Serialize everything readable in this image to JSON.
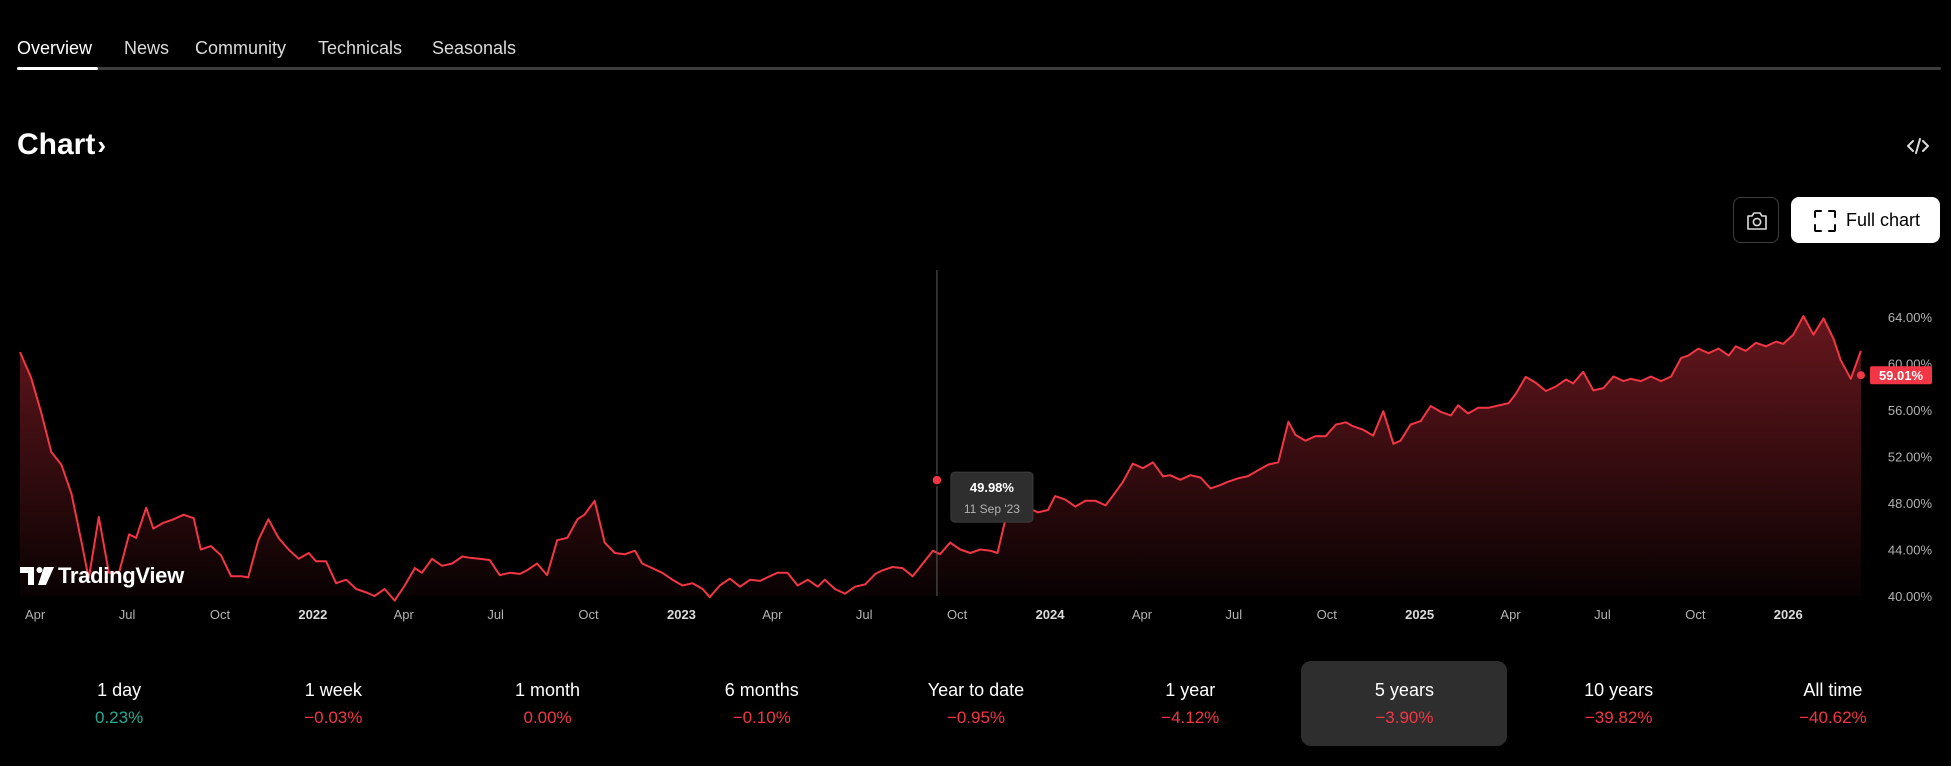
{
  "tabs": [
    {
      "label": "Overview",
      "active": true
    },
    {
      "label": "News"
    },
    {
      "label": "Community"
    },
    {
      "label": "Technicals"
    },
    {
      "label": "Seasonals"
    }
  ],
  "chart_header": {
    "title": "Chart",
    "chevron": "›",
    "embed_icon": "code-icon"
  },
  "toolbar": {
    "camera_icon": "camera-icon",
    "full_chart_label": "Full chart",
    "full_chart_icon": "fullscreen-icon"
  },
  "logo": {
    "text": "TradingView"
  },
  "colors": {
    "line": "#f23645",
    "negative": "#f23645",
    "positive": "#22ab94",
    "last_value_bg": "#f23645"
  },
  "chart_data": {
    "type": "area",
    "x_tick_labels": [
      {
        "label": "Apr",
        "date": "2021-04-01"
      },
      {
        "label": "Jul",
        "date": "2021-07-01"
      },
      {
        "label": "Oct",
        "date": "2021-10-01"
      },
      {
        "label": "2022",
        "date": "2022-01-01",
        "bold": true
      },
      {
        "label": "Apr",
        "date": "2022-04-01"
      },
      {
        "label": "Jul",
        "date": "2022-07-01"
      },
      {
        "label": "Oct",
        "date": "2022-10-01"
      },
      {
        "label": "2023",
        "date": "2023-01-01",
        "bold": true
      },
      {
        "label": "Apr",
        "date": "2023-04-01"
      },
      {
        "label": "Jul",
        "date": "2023-07-01"
      },
      {
        "label": "Oct",
        "date": "2023-10-01"
      },
      {
        "label": "2024",
        "date": "2024-01-01",
        "bold": true
      },
      {
        "label": "Apr",
        "date": "2024-04-01"
      },
      {
        "label": "Jul",
        "date": "2024-07-01"
      },
      {
        "label": "Oct",
        "date": "2024-10-01"
      },
      {
        "label": "2025",
        "date": "2025-01-01",
        "bold": true
      },
      {
        "label": "Apr",
        "date": "2025-04-01"
      },
      {
        "label": "Jul",
        "date": "2025-07-01"
      },
      {
        "label": "Oct",
        "date": "2025-10-01"
      },
      {
        "label": "2026",
        "date": "2026-01-01",
        "bold": true
      }
    ],
    "y_ticks": [
      {
        "value": 40,
        "label": "40.00%"
      },
      {
        "value": 44,
        "label": "44.00%"
      },
      {
        "value": 48,
        "label": "48.00%"
      },
      {
        "value": 52,
        "label": "52.00%"
      },
      {
        "value": 56,
        "label": "56.00%"
      },
      {
        "value": 60,
        "label": "60.00%"
      },
      {
        "value": 64,
        "label": "64.00%"
      }
    ],
    "ylim": [
      40,
      66
    ],
    "xlim": [
      "2021-03-17",
      "2026-03-20"
    ],
    "grid": false,
    "points": [
      [
        "2021-03-17",
        61.0
      ],
      [
        "2021-03-28",
        58.8
      ],
      [
        "2021-04-07",
        55.8
      ],
      [
        "2021-04-17",
        52.4
      ],
      [
        "2021-04-27",
        51.3
      ],
      [
        "2021-05-07",
        48.8
      ],
      [
        "2021-05-17",
        44.6
      ],
      [
        "2021-05-24",
        41.5
      ],
      [
        "2021-06-03",
        46.8
      ],
      [
        "2021-06-13",
        42.0
      ],
      [
        "2021-06-23",
        42.0
      ],
      [
        "2021-07-03",
        45.3
      ],
      [
        "2021-07-10",
        45.0
      ],
      [
        "2021-07-20",
        47.6
      ],
      [
        "2021-07-27",
        45.8
      ],
      [
        "2021-08-06",
        46.3
      ],
      [
        "2021-08-16",
        46.6
      ],
      [
        "2021-08-26",
        47.0
      ],
      [
        "2021-09-05",
        46.7
      ],
      [
        "2021-09-12",
        44.0
      ],
      [
        "2021-09-22",
        44.3
      ],
      [
        "2021-10-02",
        43.5
      ],
      [
        "2021-10-12",
        41.7
      ],
      [
        "2021-10-22",
        41.7
      ],
      [
        "2021-10-29",
        41.6
      ],
      [
        "2021-11-08",
        44.8
      ],
      [
        "2021-11-18",
        46.6
      ],
      [
        "2021-11-28",
        45.0
      ],
      [
        "2021-12-08",
        44.0
      ],
      [
        "2021-12-18",
        43.2
      ],
      [
        "2021-12-28",
        43.7
      ],
      [
        "2022-01-04",
        43.0
      ],
      [
        "2022-01-14",
        43.0
      ],
      [
        "2022-01-24",
        41.1
      ],
      [
        "2022-02-03",
        41.4
      ],
      [
        "2022-02-13",
        40.6
      ],
      [
        "2022-02-23",
        40.3
      ],
      [
        "2022-03-03",
        40.0
      ],
      [
        "2022-03-13",
        40.6
      ],
      [
        "2022-03-23",
        39.6
      ],
      [
        "2022-04-02",
        40.9
      ],
      [
        "2022-04-12",
        42.4
      ],
      [
        "2022-04-19",
        42.0
      ],
      [
        "2022-04-29",
        43.2
      ],
      [
        "2022-05-09",
        42.6
      ],
      [
        "2022-05-19",
        42.8
      ],
      [
        "2022-05-29",
        43.4
      ],
      [
        "2022-06-05",
        43.3
      ],
      [
        "2022-06-15",
        43.2
      ],
      [
        "2022-06-25",
        43.1
      ],
      [
        "2022-07-05",
        41.8
      ],
      [
        "2022-07-15",
        42.0
      ],
      [
        "2022-07-25",
        41.9
      ],
      [
        "2022-08-01",
        42.2
      ],
      [
        "2022-08-11",
        42.8
      ],
      [
        "2022-08-21",
        41.8
      ],
      [
        "2022-08-31",
        44.8
      ],
      [
        "2022-09-10",
        45.0
      ],
      [
        "2022-09-20",
        46.6
      ],
      [
        "2022-09-27",
        47.0
      ],
      [
        "2022-10-07",
        48.2
      ],
      [
        "2022-10-17",
        44.6
      ],
      [
        "2022-10-27",
        43.7
      ],
      [
        "2022-11-06",
        43.6
      ],
      [
        "2022-11-16",
        43.9
      ],
      [
        "2022-11-23",
        42.8
      ],
      [
        "2022-12-03",
        42.4
      ],
      [
        "2022-12-13",
        42.0
      ],
      [
        "2022-12-23",
        41.4
      ],
      [
        "2023-01-02",
        40.9
      ],
      [
        "2023-01-12",
        41.1
      ],
      [
        "2023-01-22",
        40.6
      ],
      [
        "2023-01-29",
        39.9
      ],
      [
        "2023-02-08",
        40.9
      ],
      [
        "2023-02-18",
        41.5
      ],
      [
        "2023-02-28",
        40.8
      ],
      [
        "2023-03-10",
        41.4
      ],
      [
        "2023-03-20",
        41.3
      ],
      [
        "2023-03-27",
        41.6
      ],
      [
        "2023-04-06",
        42.0
      ],
      [
        "2023-04-16",
        42.0
      ],
      [
        "2023-04-26",
        40.9
      ],
      [
        "2023-05-06",
        41.4
      ],
      [
        "2023-05-16",
        40.8
      ],
      [
        "2023-05-23",
        41.4
      ],
      [
        "2023-06-02",
        40.6
      ],
      [
        "2023-06-12",
        40.2
      ],
      [
        "2023-06-22",
        40.8
      ],
      [
        "2023-07-02",
        41.0
      ],
      [
        "2023-07-12",
        41.9
      ],
      [
        "2023-07-19",
        42.2
      ],
      [
        "2023-07-29",
        42.5
      ],
      [
        "2023-08-08",
        42.4
      ],
      [
        "2023-08-18",
        41.7
      ],
      [
        "2023-08-28",
        42.8
      ],
      [
        "2023-09-07",
        43.9
      ],
      [
        "2023-09-14",
        43.6
      ],
      [
        "2023-09-24",
        44.6
      ],
      [
        "2023-10-04",
        44.0
      ],
      [
        "2023-10-14",
        43.7
      ],
      [
        "2023-10-24",
        44.0
      ],
      [
        "2023-11-03",
        43.9
      ],
      [
        "2023-11-10",
        43.7
      ],
      [
        "2023-11-20",
        47.4
      ],
      [
        "2023-11-30",
        47.6
      ],
      [
        "2023-12-10",
        47.6
      ],
      [
        "2023-12-20",
        47.2
      ],
      [
        "2023-12-30",
        47.4
      ],
      [
        "2024-01-06",
        48.6
      ],
      [
        "2024-01-16",
        48.3
      ],
      [
        "2024-01-26",
        47.7
      ],
      [
        "2024-02-05",
        48.2
      ],
      [
        "2024-02-15",
        48.2
      ],
      [
        "2024-02-25",
        47.8
      ],
      [
        "2024-03-03",
        48.6
      ],
      [
        "2024-03-13",
        49.8
      ],
      [
        "2024-03-23",
        51.4
      ],
      [
        "2024-04-02",
        51.0
      ],
      [
        "2024-04-12",
        51.5
      ],
      [
        "2024-04-22",
        50.3
      ],
      [
        "2024-04-29",
        50.4
      ],
      [
        "2024-05-09",
        50.0
      ],
      [
        "2024-05-19",
        50.4
      ],
      [
        "2024-05-29",
        50.2
      ],
      [
        "2024-06-08",
        49.2
      ],
      [
        "2024-06-18",
        49.4
      ],
      [
        "2024-06-25",
        49.6
      ],
      [
        "2024-07-05",
        49.8
      ],
      [
        "2024-07-15",
        49.9
      ],
      [
        "2024-07-25",
        50.3
      ],
      [
        "2024-08-04",
        50.7
      ],
      [
        "2024-08-14",
        50.8
      ],
      [
        "2024-08-24",
        54.2
      ],
      [
        "2024-08-31",
        53.0
      ],
      [
        "2024-09-10",
        52.4
      ],
      [
        "2024-09-20",
        52.7
      ],
      [
        "2024-09-30",
        52.6
      ],
      [
        "2024-10-10",
        53.5
      ],
      [
        "2024-10-20",
        53.6
      ],
      [
        "2024-10-27",
        53.2
      ],
      [
        "2024-11-06",
        52.8
      ],
      [
        "2024-11-16",
        52.2
      ],
      [
        "2024-11-26",
        54.2
      ],
      [
        "2024-12-06",
        51.3
      ],
      [
        "2024-12-13",
        51.5
      ],
      [
        "2024-12-23",
        52.8
      ],
      [
        "2025-01-02",
        53.0
      ],
      [
        "2025-01-12",
        54.2
      ],
      [
        "2025-01-22",
        53.6
      ],
      [
        "2025-02-01",
        53.2
      ],
      [
        "2025-02-08",
        54.0
      ],
      [
        "2025-02-18",
        53.2
      ],
      [
        "2025-02-28",
        53.6
      ],
      [
        "2025-03-10",
        53.5
      ],
      [
        "2025-03-20",
        53.6
      ],
      [
        "2025-03-30",
        53.7
      ],
      [
        "2025-04-06",
        54.4
      ],
      [
        "2025-04-16",
        55.8
      ],
      [
        "2025-04-26",
        55.2
      ],
      [
        "2025-05-06",
        54.4
      ],
      [
        "2025-05-16",
        54.7
      ],
      [
        "2025-05-26",
        55.2
      ],
      [
        "2025-06-02",
        54.8
      ],
      [
        "2025-06-12",
        55.8
      ],
      [
        "2025-06-22",
        54.2
      ],
      [
        "2025-07-02",
        54.4
      ],
      [
        "2025-07-12",
        55.4
      ],
      [
        "2025-07-22",
        55.0
      ],
      [
        "2025-07-29",
        55.2
      ],
      [
        "2025-08-08",
        55.0
      ],
      [
        "2025-08-18",
        55.4
      ],
      [
        "2025-08-28",
        55.0
      ],
      [
        "2025-09-07",
        55.4
      ],
      [
        "2025-09-17",
        57.0
      ],
      [
        "2025-09-24",
        57.2
      ],
      [
        "2025-10-04",
        57.8
      ],
      [
        "2025-10-14",
        57.4
      ],
      [
        "2025-10-24",
        57.8
      ],
      [
        "2025-11-03",
        57.2
      ],
      [
        "2025-11-10",
        58.0
      ],
      [
        "2025-11-20",
        57.6
      ],
      [
        "2025-11-30",
        58.3
      ],
      [
        "2025-12-10",
        58.0
      ],
      [
        "2025-12-20",
        58.4
      ],
      [
        "2025-12-27",
        58.2
      ],
      [
        "2026-01-06",
        59.0
      ],
      [
        "2026-01-16",
        60.6
      ],
      [
        "2026-01-26",
        59.0
      ],
      [
        "2026-02-05",
        60.4
      ],
      [
        "2026-02-15",
        58.6
      ],
      [
        "2026-02-22",
        56.8
      ],
      [
        "2026-03-04",
        55.2
      ],
      [
        "2026-03-14",
        57.6
      ]
    ],
    "series_tail": [
      [
        "2025-11-20",
        57.6
      ],
      [
        "2025-12-01",
        57.0
      ],
      [
        "2025-12-10",
        58.6
      ],
      [
        "2025-12-20",
        59.0
      ],
      [
        "2026-01-01",
        58.6
      ],
      [
        "2026-01-10",
        59.4
      ],
      [
        "2026-01-20",
        60.6
      ],
      [
        "2026-01-30",
        61.4
      ],
      [
        "2026-02-10",
        61.8
      ],
      [
        "2026-02-20",
        61.6
      ],
      [
        "2026-03-01",
        62.4
      ],
      [
        "2026-03-10",
        63.2
      ]
    ],
    "last_value": {
      "value": 59.01,
      "label": "59.01%"
    },
    "crosshair": {
      "date": "2023-09-11",
      "value": 49.98,
      "value_label": "49.98%",
      "date_label": "11 Sep '23"
    }
  },
  "periods": [
    {
      "label": "1 day",
      "value": "0.23%",
      "positive": true
    },
    {
      "label": "1 week",
      "value": "−0.03%"
    },
    {
      "label": "1 month",
      "value": "0.00%"
    },
    {
      "label": "6 months",
      "value": "−0.10%"
    },
    {
      "label": "Year to date",
      "value": "−0.95%"
    },
    {
      "label": "1 year",
      "value": "−4.12%"
    },
    {
      "label": "5 years",
      "value": "−3.90%",
      "selected": true
    },
    {
      "label": "10 years",
      "value": "−39.82%"
    },
    {
      "label": "All time",
      "value": "−40.62%"
    }
  ]
}
